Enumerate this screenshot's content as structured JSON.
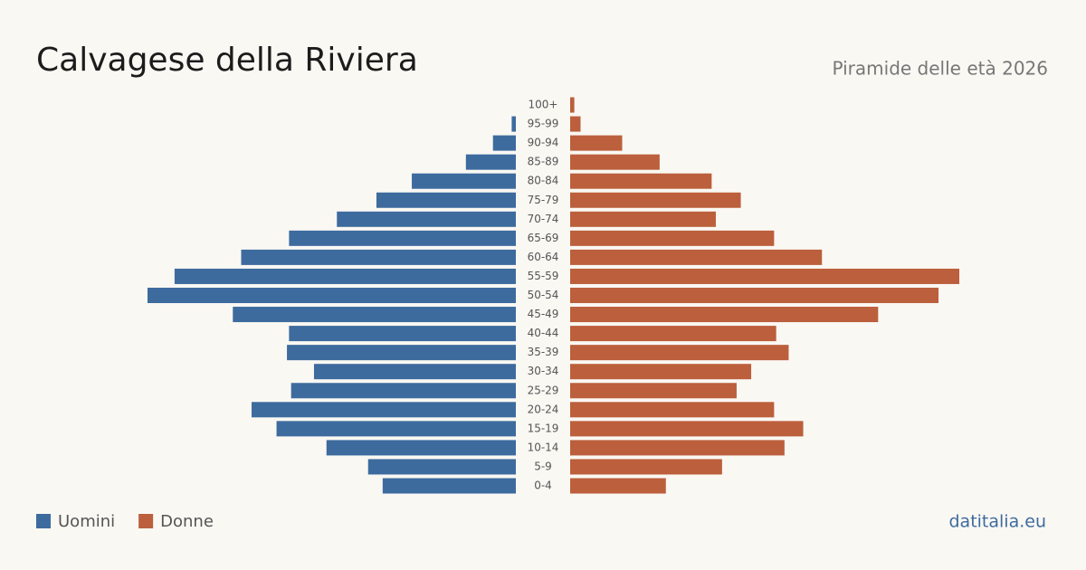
{
  "chart_data": {
    "type": "pyramid",
    "title": "Calvagese della Riviera",
    "subtitle": "Piramide delle età 2026",
    "categories": [
      "100+",
      "95-99",
      "90-94",
      "85-89",
      "80-84",
      "75-79",
      "70-74",
      "65-69",
      "60-64",
      "55-59",
      "50-54",
      "45-49",
      "40-44",
      "35-39",
      "30-34",
      "25-29",
      "20-24",
      "15-19",
      "10-14",
      "5-9",
      "0-4"
    ],
    "series": [
      {
        "name": "Uomini",
        "color": "#3d6b9e",
        "values": [
          0,
          2,
          11,
          24,
          50,
          67,
          86,
          109,
          132,
          164,
          177,
          136,
          109,
          110,
          97,
          108,
          127,
          115,
          91,
          71,
          64
        ]
      },
      {
        "name": "Donne",
        "color": "#bc5f3c",
        "values": [
          2,
          5,
          25,
          43,
          68,
          82,
          70,
          98,
          121,
          187,
          177,
          148,
          99,
          105,
          87,
          80,
          98,
          112,
          103,
          73,
          46
        ]
      }
    ],
    "source": "datitalia.eu"
  }
}
